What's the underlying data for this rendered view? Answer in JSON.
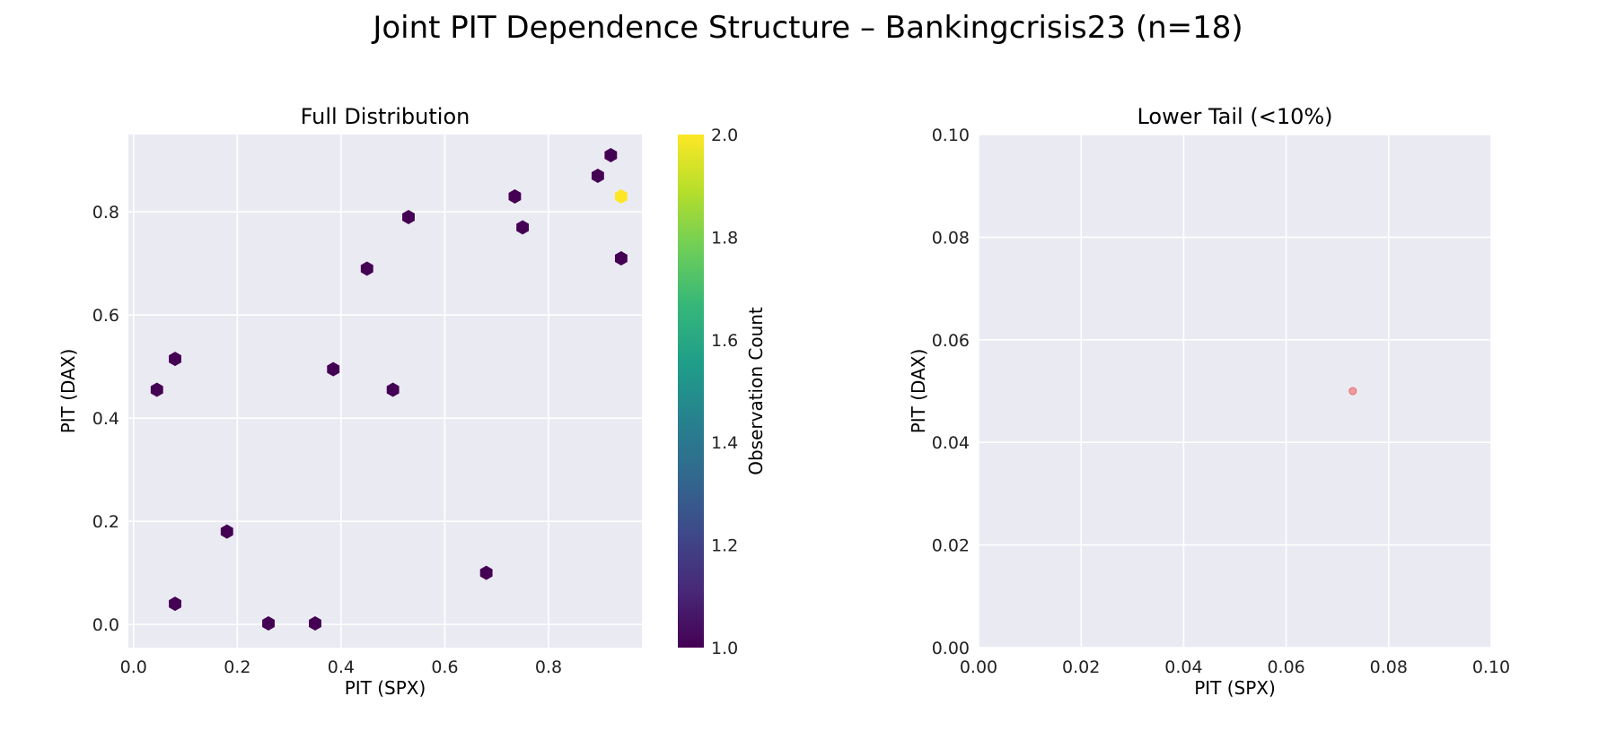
{
  "figure": {
    "title": "Joint PIT Dependence Structure – Bankingcrisis23 (n=18)"
  },
  "chart_data": [
    {
      "type": "hexbin",
      "title": "Full Distribution",
      "xlabel": "PIT (SPX)",
      "ylabel": "PIT (DAX)",
      "xlim": [
        -0.01,
        0.98
      ],
      "ylim": [
        -0.045,
        0.95
      ],
      "xticks": [
        "0.0",
        "0.2",
        "0.4",
        "0.6",
        "0.8"
      ],
      "yticks": [
        "0.0",
        "0.2",
        "0.4",
        "0.6",
        "0.8"
      ],
      "grid": true,
      "colormap": "viridis",
      "colorbar": {
        "label": "Observation Count",
        "range": [
          1.0,
          2.0
        ],
        "ticks": [
          "1.0",
          "1.2",
          "1.4",
          "1.6",
          "1.8",
          "2.0"
        ],
        "colors": [
          "#440154",
          "#482878",
          "#3e4989",
          "#31688e",
          "#26828e",
          "#1f9e89",
          "#35b779",
          "#6ece58",
          "#b5de2b",
          "#fde725"
        ]
      },
      "bins": [
        {
          "x": 0.045,
          "y": 0.455,
          "count": 1
        },
        {
          "x": 0.08,
          "y": 0.515,
          "count": 1
        },
        {
          "x": 0.08,
          "y": 0.04,
          "count": 1
        },
        {
          "x": 0.18,
          "y": 0.18,
          "count": 1
        },
        {
          "x": 0.26,
          "y": 0.002,
          "count": 1
        },
        {
          "x": 0.35,
          "y": 0.002,
          "count": 1
        },
        {
          "x": 0.385,
          "y": 0.495,
          "count": 1
        },
        {
          "x": 0.45,
          "y": 0.69,
          "count": 1
        },
        {
          "x": 0.5,
          "y": 0.455,
          "count": 1
        },
        {
          "x": 0.53,
          "y": 0.79,
          "count": 1
        },
        {
          "x": 0.68,
          "y": 0.1,
          "count": 1
        },
        {
          "x": 0.735,
          "y": 0.83,
          "count": 1
        },
        {
          "x": 0.75,
          "y": 0.77,
          "count": 1
        },
        {
          "x": 0.895,
          "y": 0.87,
          "count": 1
        },
        {
          "x": 0.92,
          "y": 0.91,
          "count": 1
        },
        {
          "x": 0.94,
          "y": 0.83,
          "count": 2
        },
        {
          "x": 0.94,
          "y": 0.71,
          "count": 1
        }
      ]
    },
    {
      "type": "scatter",
      "title": "Lower Tail (<10%)",
      "xlabel": "PIT (SPX)",
      "ylabel": "PIT (DAX)",
      "xlim": [
        0.0,
        0.1
      ],
      "ylim": [
        0.0,
        0.1
      ],
      "xticks": [
        "0.00",
        "0.02",
        "0.04",
        "0.06",
        "0.08",
        "0.10"
      ],
      "yticks": [
        "0.00",
        "0.02",
        "0.04",
        "0.06",
        "0.08",
        "0.10"
      ],
      "grid": true,
      "point_color": "#f08080",
      "points": [
        {
          "x": 0.073,
          "y": 0.05
        }
      ]
    }
  ]
}
